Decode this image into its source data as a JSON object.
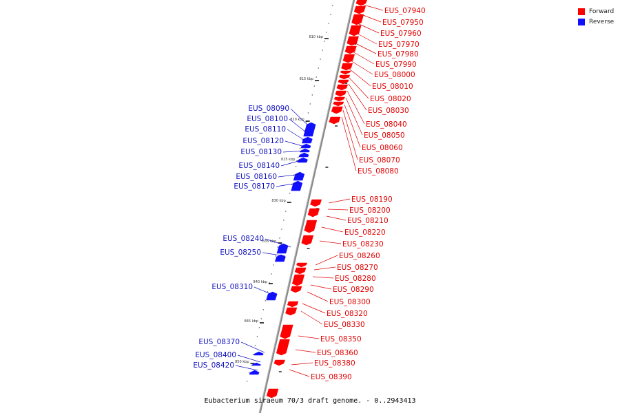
{
  "caption": "Eubacterium siraeum 70/3 draft genome. - 0..2943413",
  "legend": [
    {
      "label": "Forward",
      "color": "#ff0000"
    },
    {
      "label": "Reverse",
      "color": "#1010ff"
    }
  ],
  "colors": {
    "forward": "#ff0000",
    "forward_label": "#e00000",
    "reverse": "#1010ff",
    "reverse_label": "#1010c0",
    "backbone": "#888888"
  },
  "ticks": [
    "810 kbp",
    "815 kbp",
    "820 kbp",
    "825 kbp",
    "830 kbp",
    "835 kbp",
    "840 kbp",
    "845 kbp",
    "850 kbp"
  ],
  "forward_genes": [
    "EUS_07940",
    "EUS_07950",
    "EUS_07960",
    "EUS_07970",
    "EUS_07980",
    "EUS_07990",
    "EUS_08000",
    "EUS_08010",
    "EUS_08020",
    "EUS_08030",
    "EUS_08040",
    "EUS_08050",
    "EUS_08060",
    "EUS_08070",
    "EUS_08080",
    "EUS_08190",
    "EUS_08200",
    "EUS_08210",
    "EUS_08220",
    "EUS_08230",
    "EUS_08260",
    "EUS_08270",
    "EUS_08280",
    "EUS_08290",
    "EUS_08300",
    "EUS_08320",
    "EUS_08330",
    "EUS_08350",
    "EUS_08360",
    "EUS_08380",
    "EUS_08390"
  ],
  "reverse_genes": [
    "EUS_08090",
    "EUS_08100",
    "EUS_08110",
    "EUS_08120",
    "EUS_08130",
    "EUS_08140",
    "EUS_08160",
    "EUS_08170",
    "EUS_08240",
    "EUS_08250",
    "EUS_08310",
    "EUS_08370",
    "EUS_08400",
    "EUS_08420"
  ]
}
